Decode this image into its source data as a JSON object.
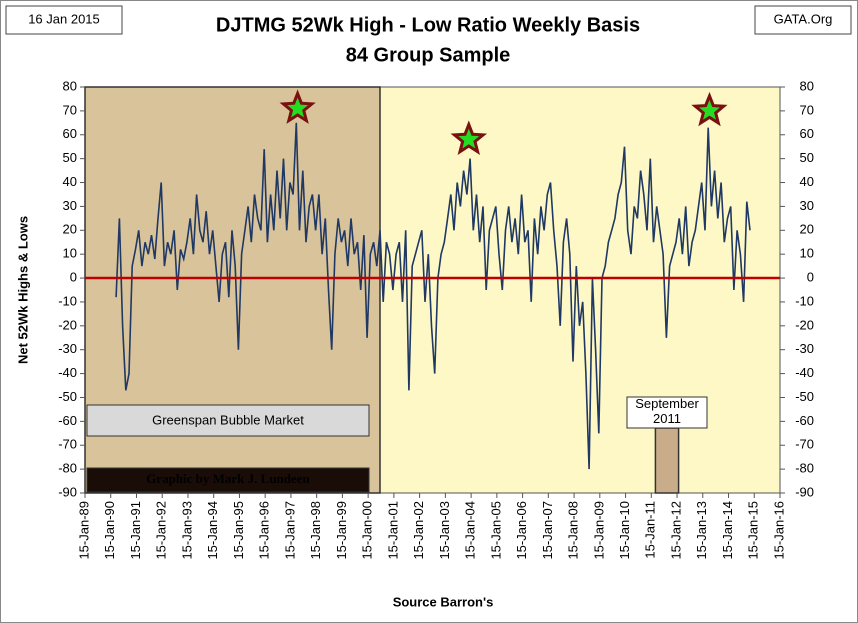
{
  "chart_data": {
    "type": "line",
    "title": "DJTMG 52Wk High - Low Ratio Weekly Basis",
    "subtitle": "84 Group Sample",
    "date_label": "16 Jan 2015",
    "source_site": "GATA.Org",
    "ylabel": "Net 52Wk Highs & Lows",
    "xlabel": "Source Barron's",
    "xlim": [
      1989.04,
      2016.04
    ],
    "xticks": [
      {
        "value": 1989.04,
        "label": "15-Jan-89"
      },
      {
        "value": 1990.04,
        "label": "15-Jan-90"
      },
      {
        "value": 1991.04,
        "label": "15-Jan-91"
      },
      {
        "value": 1992.04,
        "label": "15-Jan-92"
      },
      {
        "value": 1993.04,
        "label": "15-Jan-93"
      },
      {
        "value": 1994.04,
        "label": "15-Jan-94"
      },
      {
        "value": 1995.04,
        "label": "15-Jan-95"
      },
      {
        "value": 1996.04,
        "label": "15-Jan-96"
      },
      {
        "value": 1997.04,
        "label": "15-Jan-97"
      },
      {
        "value": 1998.04,
        "label": "15-Jan-98"
      },
      {
        "value": 1999.04,
        "label": "15-Jan-99"
      },
      {
        "value": 2000.04,
        "label": "15-Jan-00"
      },
      {
        "value": 2001.04,
        "label": "15-Jan-01"
      },
      {
        "value": 2002.04,
        "label": "15-Jan-02"
      },
      {
        "value": 2003.04,
        "label": "15-Jan-03"
      },
      {
        "value": 2004.04,
        "label": "15-Jan-04"
      },
      {
        "value": 2005.04,
        "label": "15-Jan-05"
      },
      {
        "value": 2006.04,
        "label": "15-Jan-06"
      },
      {
        "value": 2007.04,
        "label": "15-Jan-07"
      },
      {
        "value": 2008.04,
        "label": "15-Jan-08"
      },
      {
        "value": 2009.04,
        "label": "15-Jan-09"
      },
      {
        "value": 2010.04,
        "label": "15-Jan-10"
      },
      {
        "value": 2011.04,
        "label": "15-Jan-11"
      },
      {
        "value": 2012.04,
        "label": "15-Jan-12"
      },
      {
        "value": 2013.04,
        "label": "15-Jan-13"
      },
      {
        "value": 2014.04,
        "label": "15-Jan-14"
      },
      {
        "value": 2015.04,
        "label": "15-Jan-15"
      },
      {
        "value": 2016.04,
        "label": "15-Jan-16"
      }
    ],
    "ylim": [
      -90,
      80
    ],
    "yticks": [
      -90,
      -80,
      -70,
      -60,
      -50,
      -40,
      -30,
      -20,
      -10,
      0,
      10,
      20,
      30,
      40,
      50,
      60,
      70,
      80
    ],
    "y2lim": [
      -90,
      80
    ],
    "y2ticks": [
      -90,
      -80,
      -70,
      -60,
      -50,
      -40,
      -30,
      -20,
      -10,
      0,
      10,
      20,
      30,
      40,
      50,
      60,
      70,
      80
    ],
    "x": [
      1990.25,
      1990.375,
      1990.5,
      1990.625,
      1990.75,
      1990.875,
      1991,
      1991.125,
      1991.25,
      1991.375,
      1991.5,
      1991.625,
      1991.75,
      1991.875,
      1992,
      1992.125,
      1992.25,
      1992.375,
      1992.5,
      1992.625,
      1992.75,
      1992.875,
      1993,
      1993.125,
      1993.25,
      1993.375,
      1993.5,
      1993.625,
      1993.75,
      1993.875,
      1994,
      1994.125,
      1994.25,
      1994.375,
      1994.5,
      1994.625,
      1994.75,
      1994.875,
      1995,
      1995.125,
      1995.25,
      1995.375,
      1995.5,
      1995.625,
      1995.75,
      1995.875,
      1996,
      1996.125,
      1996.25,
      1996.375,
      1996.5,
      1996.625,
      1996.75,
      1996.875,
      1997,
      1997.125,
      1997.25,
      1997.375,
      1997.5,
      1997.625,
      1997.75,
      1997.875,
      1998,
      1998.125,
      1998.25,
      1998.375,
      1998.5,
      1998.625,
      1998.75,
      1998.875,
      1999,
      1999.125,
      1999.25,
      1999.375,
      1999.5,
      1999.625,
      1999.75,
      1999.875,
      2000,
      2000.125,
      2000.25,
      2000.375,
      2000.5,
      2000.625,
      2000.75,
      2000.875,
      2001,
      2001.125,
      2001.25,
      2001.375,
      2001.5,
      2001.625,
      2001.75,
      2001.875,
      2002,
      2002.125,
      2002.25,
      2002.375,
      2002.5,
      2002.625,
      2002.75,
      2002.875,
      2003,
      2003.125,
      2003.25,
      2003.375,
      2003.5,
      2003.625,
      2003.75,
      2003.875,
      2004,
      2004.125,
      2004.25,
      2004.375,
      2004.5,
      2004.625,
      2004.75,
      2004.875,
      2005,
      2005.125,
      2005.25,
      2005.375,
      2005.5,
      2005.625,
      2005.75,
      2005.875,
      2006,
      2006.125,
      2006.25,
      2006.375,
      2006.5,
      2006.625,
      2006.75,
      2006.875,
      2007,
      2007.125,
      2007.25,
      2007.375,
      2007.5,
      2007.625,
      2007.75,
      2007.875,
      2008,
      2008.125,
      2008.25,
      2008.375,
      2008.5,
      2008.625,
      2008.75,
      2008.875,
      2009,
      2009.125,
      2009.25,
      2009.375,
      2009.5,
      2009.625,
      2009.75,
      2009.875,
      2010,
      2010.125,
      2010.25,
      2010.375,
      2010.5,
      2010.625,
      2010.75,
      2010.875,
      2011,
      2011.125,
      2011.25,
      2011.375,
      2011.5,
      2011.625,
      2011.75,
      2011.875,
      2012,
      2012.125,
      2012.25,
      2012.375,
      2012.5,
      2012.625,
      2012.75,
      2012.875,
      2013,
      2013.125,
      2013.25,
      2013.375,
      2013.5,
      2013.625,
      2013.75,
      2013.875,
      2014,
      2014.125,
      2014.25,
      2014.375,
      2014.5,
      2014.625,
      2014.75,
      2014.875
    ],
    "series": [
      {
        "color": "#1f3864",
        "values": [
          -8,
          25,
          -20,
          -47,
          -40,
          5,
          12,
          20,
          5,
          15,
          10,
          18,
          8,
          25,
          40,
          5,
          15,
          10,
          20,
          -5,
          12,
          8,
          15,
          25,
          10,
          35,
          20,
          15,
          28,
          10,
          20,
          5,
          -10,
          10,
          15,
          -8,
          20,
          5,
          -30,
          10,
          20,
          30,
          15,
          35,
          25,
          20,
          54,
          15,
          35,
          20,
          45,
          25,
          50,
          20,
          40,
          35,
          65,
          20,
          45,
          15,
          30,
          35,
          20,
          35,
          10,
          25,
          -5,
          -30,
          10,
          25,
          15,
          20,
          5,
          25,
          10,
          15,
          -5,
          18,
          -25,
          10,
          15,
          5,
          20,
          -10,
          15,
          10,
          -5,
          10,
          15,
          -10,
          20,
          -47,
          5,
          10,
          15,
          20,
          -10,
          10,
          -20,
          -40,
          0,
          10,
          15,
          25,
          35,
          20,
          40,
          30,
          45,
          35,
          50,
          20,
          35,
          15,
          30,
          -5,
          20,
          25,
          30,
          10,
          -5,
          20,
          30,
          15,
          25,
          10,
          35,
          15,
          20,
          -10,
          25,
          10,
          30,
          20,
          35,
          40,
          20,
          5,
          -20,
          15,
          25,
          10,
          -35,
          5,
          -20,
          -10,
          -40,
          -80,
          0,
          -30,
          -65,
          0,
          5,
          15,
          20,
          25,
          35,
          40,
          55,
          20,
          10,
          30,
          25,
          45,
          35,
          20,
          50,
          15,
          30,
          20,
          10,
          -25,
          5,
          10,
          15,
          25,
          10,
          30,
          5,
          15,
          20,
          30,
          40,
          20,
          63,
          30,
          45,
          25,
          40,
          15,
          25,
          30,
          -5,
          20,
          10,
          -10,
          32,
          20
        ]
      }
    ],
    "zero_line_color": "#c00000",
    "stars": [
      {
        "x": 1997.3,
        "y": 71
      },
      {
        "x": 2003.95,
        "y": 58
      },
      {
        "x": 2013.3,
        "y": 70
      }
    ],
    "regions": [
      {
        "label": "Greenspan Bubble Market",
        "x": [
          1989.04,
          2000.5
        ],
        "color": "#d9c39a"
      },
      {
        "label": "September 2011",
        "x": [
          2011.2,
          2012.1
        ],
        "color": "#c9ad8a"
      }
    ],
    "credit": "Graphic by Mark J. Lundeen"
  }
}
